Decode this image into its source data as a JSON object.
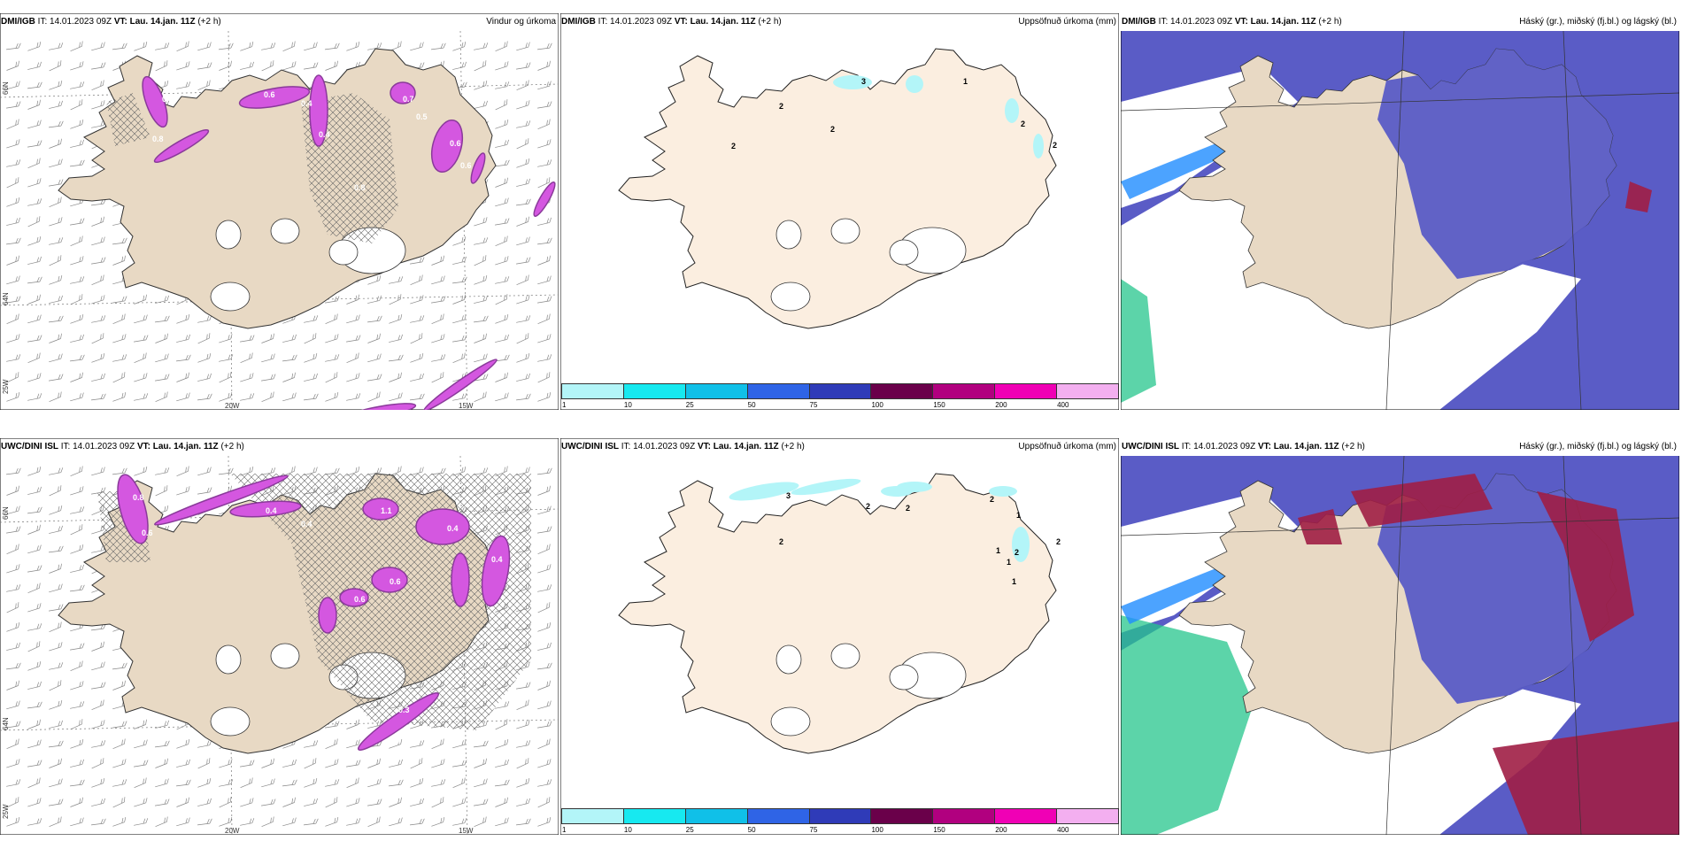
{
  "panels": [
    {
      "id": "wind",
      "model": "DMI/IGB",
      "init_label": "IT: 14.01.2023 09Z",
      "valid_label": "VT: Lau. 14.jan. 11Z",
      "lead": "(+2 h)",
      "field": "Vindur og úrkoma",
      "lon_labels": [
        "20W",
        "15W"
      ],
      "lat_labels": [
        "66N",
        "64N",
        "25W"
      ],
      "scatter_values": [
        "0.4",
        "0.8",
        "0.6",
        "0.4",
        "0.4",
        "0.7",
        "0.6",
        "0.6",
        "0.8",
        "0.5"
      ]
    },
    {
      "id": "accum",
      "model": "DMI/IGB",
      "init_label": "IT: 14.01.2023 09Z",
      "valid_label": "VT: Lau. 14.jan. 11Z",
      "lead": "(+2 h)",
      "field": "Uppsöfnuð úrkoma (mm)",
      "contour_values": [
        "3",
        "1",
        "2",
        "2",
        "2",
        "2",
        "2"
      ]
    },
    {
      "id": "cloud",
      "model": "DMI/IGB",
      "init_label": "IT: 14.01.2023 09Z",
      "valid_label": "VT: Lau. 14.jan. 11Z",
      "lead": "(+2 h)",
      "field": "Háský (gr.), miðský (fj.bl.) og lágský (bl.)"
    },
    {
      "id": "wind2",
      "model": "UWC/DINI ISL",
      "init_label": "IT: 14.01.2023 09Z",
      "valid_label": "VT: Lau. 14.jan. 11Z",
      "lead": "(+2 h)",
      "field": "",
      "lon_labels": [
        "20W",
        "15W"
      ],
      "lat_labels": [
        "66N",
        "64N",
        "25W"
      ],
      "scatter_values": [
        "0.8",
        "0.6",
        "0.4",
        "0.4",
        "1.1",
        "0.4",
        "0.4",
        "0.6",
        "0.6",
        "0.3",
        "0.4"
      ]
    },
    {
      "id": "accum2",
      "model": "UWC/DINI ISL",
      "init_label": "IT: 14.01.2023 09Z",
      "valid_label": "VT: Lau. 14.jan. 11Z",
      "lead": "(+2 h)",
      "field": "Uppsöfnuð úrkoma (mm)",
      "contour_values": [
        "2",
        "3",
        "2",
        "2",
        "2",
        "1",
        "1",
        "2",
        "1",
        "1",
        "2"
      ]
    },
    {
      "id": "cloud2",
      "model": "UWC/DINI ISL",
      "init_label": "IT: 14.01.2023 09Z",
      "valid_label": "VT: Lau. 14.jan. 11Z",
      "lead": "(+2 h)",
      "field": "Háský (gr.), miðský (fj.bl.) og lágský (bl.)"
    }
  ],
  "colorbar": {
    "ticks": [
      "1",
      "10",
      "25",
      "50",
      "75",
      "100",
      "150",
      "200",
      "400"
    ],
    "colors": [
      "#b3f5f8",
      "#17e9f0",
      "#10c0e8",
      "#2f64e6",
      "#2f3bb8",
      "#6a004a",
      "#b1007f",
      "#f000b5",
      "#f3aff0"
    ]
  },
  "colors": {
    "land": "#e8d9c4",
    "land_light": "#fbeee0",
    "cloud_high": "#5a5cc6",
    "cloud_low": "#1f8cff",
    "cloud_mid_red": "#a01e45",
    "green": "#25c58c",
    "precip": "#d457e0",
    "precip_dark": "#8a3a9a"
  }
}
